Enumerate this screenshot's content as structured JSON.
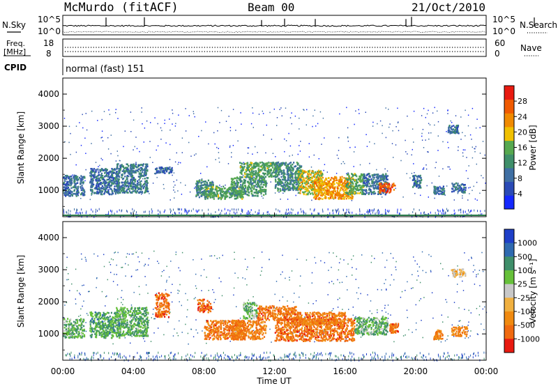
{
  "header": {
    "station": "McMurdo (fitACF)",
    "beam": "Beam 00",
    "date": "21/Oct/2010"
  },
  "noise_panel": {
    "left_label": "N.Sky",
    "right_label": "N.Search",
    "left_ticks": [
      "10^5",
      "10^0"
    ],
    "right_ticks": [
      "10^5",
      "10^0"
    ]
  },
  "freq_panel": {
    "left_label_line1": "Freq.",
    "left_label_line2": "[MHz]",
    "right_label": "Nave",
    "left_ticks": [
      "18",
      "8"
    ],
    "right_ticks": [
      "60",
      "0"
    ]
  },
  "cpid": {
    "label": "CPID",
    "value": "normal (fast) 151"
  },
  "colors": {
    "power_scale": [
      "#1428ff",
      "#2a4ab6",
      "#3f6fa3",
      "#3f8f6a",
      "#56a84f",
      "#f0c000",
      "#f08a00",
      "#f05a00",
      "#e81a10"
    ],
    "velocity_scale": [
      "#1e3fc8",
      "#2f6ab0",
      "#3f8f6a",
      "#66c03a",
      "#c8c8c8",
      "#f0b040",
      "#f08a10",
      "#f06a10",
      "#e81a10"
    ]
  },
  "chart_data": [
    {
      "type": "heatmap",
      "name": "power",
      "ylabel": "Slant Range [km]",
      "ylim": [
        180,
        4500
      ],
      "yticks": [
        "1000",
        "2000",
        "3000",
        "4000"
      ],
      "xlim": [
        "00:00",
        "24:00"
      ],
      "colorbar": {
        "label": "Power [dB]",
        "ticks": [
          "4",
          "8",
          "12",
          "16",
          "20",
          "24",
          "28"
        ],
        "range": [
          0,
          32
        ]
      },
      "echo_regions": [
        {
          "t": [
            0.0,
            1.2
          ],
          "r": [
            850,
            1500
          ],
          "level": 0.25
        },
        {
          "t": [
            1.5,
            3.2
          ],
          "r": [
            900,
            1700
          ],
          "level": 0.25
        },
        {
          "t": [
            3.0,
            4.8
          ],
          "r": [
            950,
            1850
          ],
          "level": 0.3
        },
        {
          "t": [
            5.2,
            6.2
          ],
          "r": [
            1550,
            1750
          ],
          "level": 0.22
        },
        {
          "t": [
            7.5,
            8.5
          ],
          "r": [
            800,
            1350
          ],
          "level": 0.35
        },
        {
          "t": [
            8.0,
            10.2
          ],
          "r": [
            750,
            1150
          ],
          "level": 0.45
        },
        {
          "t": [
            9.5,
            11.5
          ],
          "r": [
            850,
            1450
          ],
          "level": 0.4
        },
        {
          "t": [
            10.0,
            12.2
          ],
          "r": [
            1450,
            1900
          ],
          "level": 0.45
        },
        {
          "t": [
            12.0,
            13.5
          ],
          "r": [
            1000,
            1900
          ],
          "level": 0.35
        },
        {
          "t": [
            13.3,
            14.7
          ],
          "r": [
            900,
            1650
          ],
          "level": 0.6
        },
        {
          "t": [
            14.2,
            16.4
          ],
          "r": [
            750,
            1450
          ],
          "level": 0.72
        },
        {
          "t": [
            16.0,
            17.0
          ],
          "r": [
            900,
            1550
          ],
          "level": 0.45
        },
        {
          "t": [
            17.0,
            18.4
          ],
          "r": [
            900,
            1550
          ],
          "level": 0.25
        },
        {
          "t": [
            17.9,
            18.8
          ],
          "r": [
            950,
            1250
          ],
          "level": 0.88
        },
        {
          "t": [
            19.8,
            20.3
          ],
          "r": [
            1100,
            1500
          ],
          "level": 0.25
        },
        {
          "t": [
            21.0,
            21.6
          ],
          "r": [
            900,
            1150
          ],
          "level": 0.25
        },
        {
          "t": [
            21.8,
            22.4
          ],
          "r": [
            2800,
            3050
          ],
          "level": 0.25
        },
        {
          "t": [
            22.0,
            22.8
          ],
          "r": [
            950,
            1250
          ],
          "level": 0.28
        }
      ]
    },
    {
      "type": "heatmap",
      "name": "velocity",
      "ylabel": "Slant Range [km]",
      "ylim": [
        180,
        4500
      ],
      "yticks": [
        "1000",
        "2000",
        "3000",
        "4000"
      ],
      "xlabel": "Time UT",
      "xticks": [
        "00:00",
        "04:00",
        "08:00",
        "12:00",
        "16:00",
        "20:00",
        "00:00"
      ],
      "xlim": [
        "00:00",
        "24:00"
      ],
      "colorbar": {
        "label": "Velocity [m s⁻¹]",
        "ticks": [
          "1000",
          "500",
          "100",
          "25",
          "-25",
          "-100",
          "-500",
          "-1000"
        ],
        "range": [
          -1000,
          1000
        ]
      },
      "echo_regions": [
        {
          "t": [
            0.0,
            1.2
          ],
          "r": [
            900,
            1500
          ],
          "level": 0.35
        },
        {
          "t": [
            1.5,
            3.2
          ],
          "r": [
            900,
            1700
          ],
          "level": 0.3
        },
        {
          "t": [
            3.0,
            4.8
          ],
          "r": [
            950,
            1850
          ],
          "level": 0.32
        },
        {
          "t": [
            5.2,
            6.0
          ],
          "r": [
            1550,
            2300
          ],
          "level": 0.85
        },
        {
          "t": [
            7.6,
            8.4
          ],
          "r": [
            1700,
            2100
          ],
          "level": 0.86
        },
        {
          "t": [
            8.0,
            10.3
          ],
          "r": [
            850,
            1450
          ],
          "level": 0.82
        },
        {
          "t": [
            9.5,
            11.5
          ],
          "r": [
            850,
            1450
          ],
          "level": 0.8
        },
        {
          "t": [
            10.2,
            11.0
          ],
          "r": [
            1500,
            2000
          ],
          "level": 0.35
        },
        {
          "t": [
            11.0,
            13.2
          ],
          "r": [
            1450,
            1900
          ],
          "level": 0.82
        },
        {
          "t": [
            12.0,
            16.5
          ],
          "r": [
            800,
            1500
          ],
          "level": 0.84
        },
        {
          "t": [
            13.0,
            16.0
          ],
          "r": [
            1300,
            1700
          ],
          "level": 0.82
        },
        {
          "t": [
            16.5,
            18.4
          ],
          "r": [
            1000,
            1550
          ],
          "level": 0.35
        },
        {
          "t": [
            18.5,
            19.0
          ],
          "r": [
            1050,
            1350
          ],
          "level": 0.84
        },
        {
          "t": [
            21.0,
            21.5
          ],
          "r": [
            850,
            1150
          ],
          "level": 0.8
        },
        {
          "t": [
            22.0,
            22.9
          ],
          "r": [
            950,
            1250
          ],
          "level": 0.78
        },
        {
          "t": [
            22.0,
            22.8
          ],
          "r": [
            2800,
            3050
          ],
          "level": 0.6
        }
      ]
    }
  ]
}
